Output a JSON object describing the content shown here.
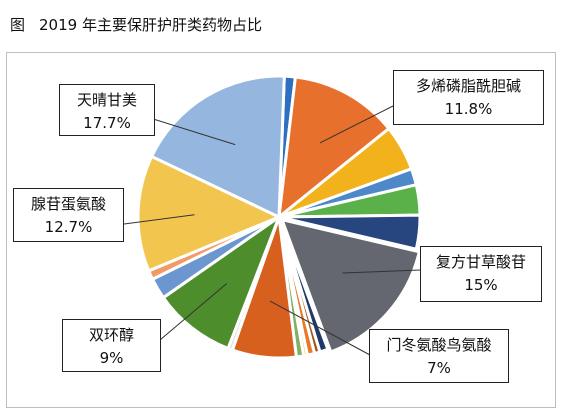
{
  "figure": {
    "label": "图",
    "title": "2019 年主要保肝护肝类药物占比"
  },
  "chart_data": {
    "type": "pie",
    "title": "2019 年主要保肝护肝类药物占比",
    "slices": [
      {
        "label": "",
        "value": 1.2,
        "color": "#2e6fc1"
      },
      {
        "label": "多烯磷脂酰胆碱",
        "value": 11.8,
        "color": "#e8702d"
      },
      {
        "label": "",
        "value": 5.0,
        "color": "#f2b21c"
      },
      {
        "label": "",
        "value": 1.8,
        "color": "#4d88c9"
      },
      {
        "label": "",
        "value": 3.3,
        "color": "#5ab14a"
      },
      {
        "label": "",
        "value": 3.7,
        "color": "#27457e"
      },
      {
        "label": "复方甘草酸苷",
        "value": 15.0,
        "color": "#646770"
      },
      {
        "label": "",
        "value": 0.9,
        "color": "#1f3a6a"
      },
      {
        "label": "",
        "value": 0.6,
        "color": "#9c5620"
      },
      {
        "label": "",
        "value": 0.8,
        "color": "#e57a28"
      },
      {
        "label": "",
        "value": 0.4,
        "color": "#f6c35c"
      },
      {
        "label": "",
        "value": 0.8,
        "color": "#7fb063"
      },
      {
        "label": "门冬氨酸鸟氨酸",
        "value": 7.0,
        "color": "#d8601f"
      },
      {
        "label": "",
        "value": 0.5,
        "color": "#e0e0e0"
      },
      {
        "label": "双环醇",
        "value": 9.0,
        "color": "#4e8d2c"
      },
      {
        "label": "",
        "value": 2.3,
        "color": "#6c96cf"
      },
      {
        "label": "",
        "value": 1.0,
        "color": "#f19a68"
      },
      {
        "label": "腺苷蛋氨酸",
        "value": 12.7,
        "color": "#f2c64e"
      },
      {
        "label": "天晴甘美",
        "value": 17.7,
        "color": "#94b6df"
      }
    ],
    "labels": [
      {
        "name": "天晴甘美",
        "pct": "17.7%"
      },
      {
        "name": "多烯磷脂酰胆碱",
        "pct": "11.8%"
      },
      {
        "name": "腺苷蛋氨酸",
        "pct": "12.7%"
      },
      {
        "name": "复方甘草酸苷",
        "pct": "15%"
      },
      {
        "name": "双环醇",
        "pct": "9%"
      },
      {
        "name": "门冬氨酸鸟氨酸",
        "pct": "7%"
      }
    ],
    "legend": "none"
  }
}
